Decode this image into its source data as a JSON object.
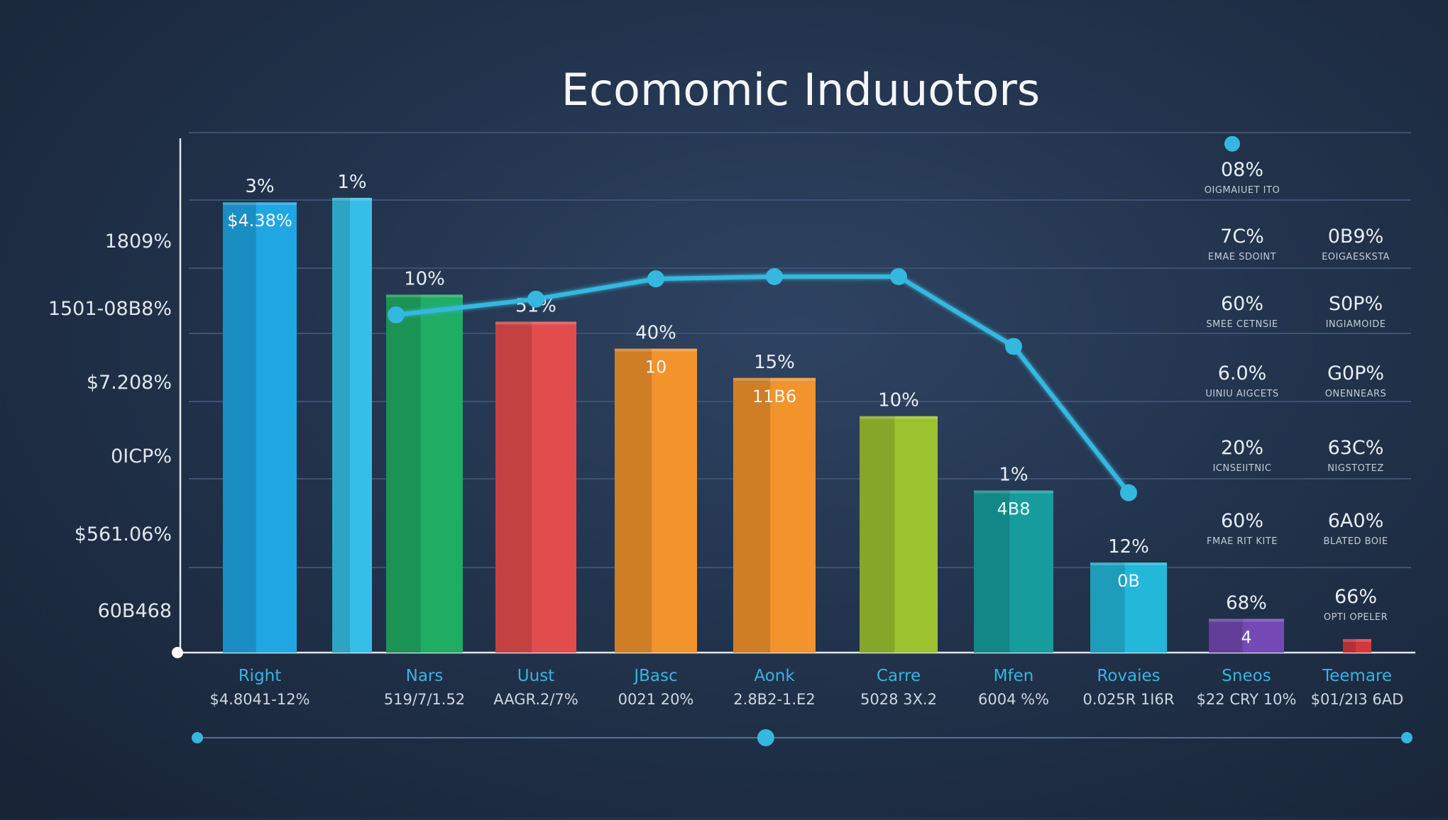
{
  "chart_data": {
    "type": "bar",
    "title": "Ecomomic Induuotors",
    "y_tick_labels": [
      "1809%",
      "1501-08B8%",
      "$7.208%",
      "0ICP%",
      "$561.06%",
      "60B468"
    ],
    "categories": [
      "Right",
      "",
      "Nars",
      "Uust",
      "JBasc",
      "Aonk",
      "Carre",
      "Mfen",
      "Rovaies",
      "Sneos",
      "Teemare"
    ],
    "category_sublabels": [
      "$4.8041-12%",
      "",
      "519/7/1.52",
      "AAGR.2/7%",
      "0021 20%",
      "2.8B2-1.E2",
      "5028 3X.2",
      "6004 %%",
      "0.025R 1I6R",
      "$22 CRY 10%",
      "$01/2I3 6AD"
    ],
    "values": [
      100,
      101,
      79.5,
      73.5,
      67.5,
      61,
      52.5,
      36,
      20,
      7.5,
      3
    ],
    "value_labels": [
      "3%",
      "1%",
      "10%",
      "51%",
      "40%",
      "15%",
      "10%",
      "1%",
      "12%",
      "68%",
      ""
    ],
    "inner_labels": [
      "$4.38%",
      "",
      "",
      "",
      "10",
      "11B6",
      "",
      "4B8",
      "0B",
      "4",
      ""
    ],
    "colors": [
      "#1fa6e3",
      "#36bfe6",
      "#1fac63",
      "#e34c4c",
      "#f2932c",
      "#f2932c",
      "#9cc230",
      "#179c9e",
      "#23b7da",
      "#7449b3",
      "#d8363d"
    ],
    "line_series": {
      "category_index": [
        2,
        3,
        4,
        5,
        6,
        7,
        8
      ],
      "values": [
        75,
        78.5,
        83,
        83.5,
        83.5,
        68,
        35.5
      ]
    },
    "top_marker_value": 113,
    "ylim": [
      0,
      115
    ],
    "grid": true,
    "right_panel": {
      "rows": [
        {
          "left_value": "08%",
          "left_caption": "OIGMAIUET ITO",
          "right_value": "",
          "right_caption": ""
        },
        {
          "left_value": "7C%",
          "left_caption": "EMAE SDOINT",
          "right_value": "0B9%",
          "right_caption": "EOIGAESKSTA"
        },
        {
          "left_value": "60%",
          "left_caption": "SMEE CETNSIE",
          "right_value": "S0P%",
          "right_caption": "INGIAMOIDE"
        },
        {
          "left_value": "6.0%",
          "left_caption": "UINIU AIGCETS",
          "right_value": "G0P%",
          "right_caption": "ONENNEARS"
        },
        {
          "left_value": "20%",
          "left_caption": "ICNSEIITNIC",
          "right_value": "63C%",
          "right_caption": "NIGSTOTEZ"
        },
        {
          "left_value": "60%",
          "left_caption": "FMAE RIT KITE",
          "right_value": "6A0%",
          "right_caption": "BLATED BOIE"
        },
        {
          "left_value": "",
          "left_caption": "",
          "right_value": "66%",
          "right_caption": "OPTI OPELER"
        }
      ]
    },
    "slider": {
      "position": 0.47
    }
  }
}
